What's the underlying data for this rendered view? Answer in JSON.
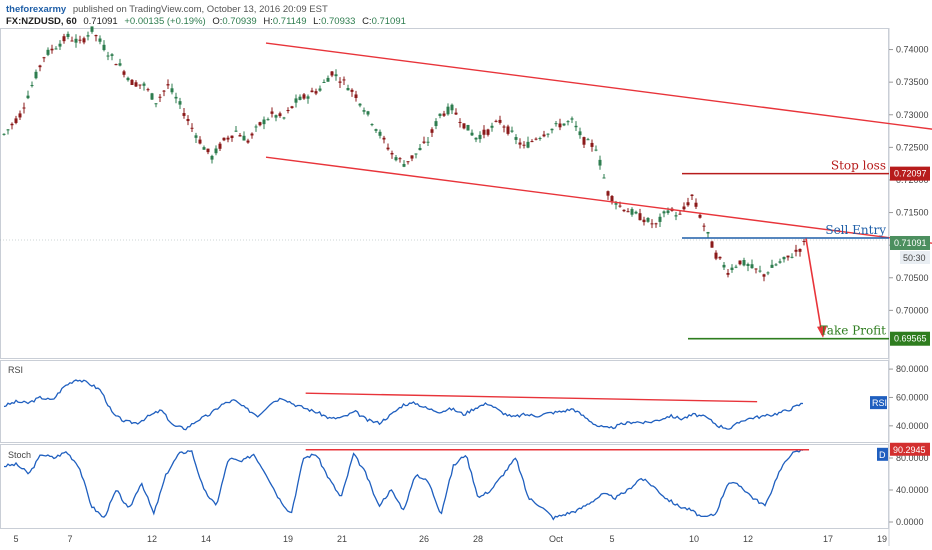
{
  "header": {
    "author": "theforexarmy",
    "published_text": "published on TradingView.com, October 13, 2016 20:09 EST",
    "symbol": "FX:NZDUSD, 60",
    "last": "0.71091",
    "change": "+0.00135 (+0.19%)",
    "o_label": "O:",
    "o": "0.70939",
    "h_label": "H:",
    "h": "0.71149",
    "l_label": "L:",
    "l": "0.70933",
    "c_label": "C:",
    "c": "0.71091"
  },
  "colors": {
    "up_candle": "#2e7d4f",
    "down_candle": "#8b1a1a",
    "channel": "#e8343a",
    "stop_loss": "#b71c1c",
    "sell_entry": "#1f5fa8",
    "take_profit": "#2e7d1f",
    "indicator_line": "#1f5fbf",
    "price_badge": "#4c8f5f"
  },
  "chart_data": [
    {
      "type": "line",
      "title": "",
      "note": "NZDUSD hourly candlestick price, approximate close path",
      "x": [
        "5",
        "7",
        "12",
        "14",
        "19",
        "21",
        "26",
        "28",
        "Oct",
        "5",
        "10",
        "12",
        "17",
        "19"
      ],
      "points": [
        [
          0,
          0.727
        ],
        [
          4,
          0.73
        ],
        [
          6,
          0.733
        ],
        [
          8,
          0.736
        ],
        [
          10,
          0.739
        ],
        [
          13,
          0.7405
        ],
        [
          16,
          0.742
        ],
        [
          19,
          0.741
        ],
        [
          22,
          0.743
        ],
        [
          26,
          0.7395
        ],
        [
          29,
          0.7375
        ],
        [
          32,
          0.735
        ],
        [
          35,
          0.7345
        ],
        [
          38,
          0.732
        ],
        [
          41,
          0.7345
        ],
        [
          44,
          0.7315
        ],
        [
          47,
          0.728
        ],
        [
          50,
          0.725
        ],
        [
          52,
          0.7235
        ],
        [
          55,
          0.726
        ],
        [
          58,
          0.7275
        ],
        [
          61,
          0.726
        ],
        [
          64,
          0.7285
        ],
        [
          67,
          0.73
        ],
        [
          70,
          0.7295
        ],
        [
          73,
          0.732
        ],
        [
          76,
          0.733
        ],
        [
          79,
          0.734
        ],
        [
          82,
          0.7365
        ],
        [
          85,
          0.735
        ],
        [
          88,
          0.733
        ],
        [
          91,
          0.73
        ],
        [
          94,
          0.727
        ],
        [
          97,
          0.724
        ],
        [
          100,
          0.7225
        ],
        [
          103,
          0.724
        ],
        [
          106,
          0.726
        ],
        [
          109,
          0.73
        ],
        [
          112,
          0.731
        ],
        [
          115,
          0.7285
        ],
        [
          118,
          0.7265
        ],
        [
          121,
          0.7275
        ],
        [
          124,
          0.729
        ],
        [
          127,
          0.727
        ],
        [
          130,
          0.725
        ],
        [
          133,
          0.7265
        ],
        [
          136,
          0.7275
        ],
        [
          139,
          0.7285
        ],
        [
          142,
          0.729
        ],
        [
          145,
          0.726
        ],
        [
          148,
          0.725
        ],
        [
          151,
          0.718
        ],
        [
          154,
          0.716
        ],
        [
          157,
          0.715
        ],
        [
          160,
          0.714
        ],
        [
          163,
          0.713
        ],
        [
          166,
          0.7155
        ],
        [
          169,
          0.7145
        ],
        [
          172,
          0.7175
        ],
        [
          175,
          0.713
        ],
        [
          178,
          0.7085
        ],
        [
          181,
          0.706
        ],
        [
          184,
          0.7075
        ],
        [
          187,
          0.7065
        ],
        [
          190,
          0.7055
        ],
        [
          193,
          0.707
        ],
        [
          196,
          0.708
        ],
        [
          199,
          0.7095
        ],
        [
          201,
          0.7109
        ]
      ],
      "ylim": [
        0.693,
        0.743
      ],
      "y_ticks": [
        "0.74000",
        "0.73500",
        "0.73000",
        "0.72500",
        "0.72000",
        "0.71500",
        "0.71000",
        "0.70500",
        "0.70000"
      ],
      "levels": {
        "stop_loss": {
          "label": "Stop loss",
          "value": 0.72097,
          "tag": "0.72097"
        },
        "sell_entry": {
          "label": "Sell Entry",
          "value": 0.7111,
          "tag": "0.71091",
          "countdown": "50:30"
        },
        "take_profit": {
          "label": "Take Profit",
          "value": 0.69565,
          "tag": "0.69565"
        }
      },
      "channel": {
        "upper": [
          [
            66,
            0.741
          ],
          [
            264,
            0.7255
          ]
        ],
        "lower": [
          [
            66,
            0.7235
          ],
          [
            264,
            0.708
          ]
        ]
      }
    },
    {
      "type": "line",
      "title": "RSI",
      "ylim": [
        30,
        85
      ],
      "y_ticks": [
        "80.0000",
        "60.0000",
        "40.0000"
      ],
      "tag": "RSI",
      "values": [
        54,
        57,
        56,
        60,
        58,
        68,
        73,
        70,
        65,
        48,
        43,
        42,
        47,
        51,
        40,
        38,
        44,
        48,
        55,
        58,
        52,
        47,
        56,
        60,
        55,
        52,
        49,
        45,
        46,
        50,
        44,
        42,
        48,
        55,
        56,
        52,
        50,
        52,
        48,
        53,
        56,
        50,
        46,
        48,
        47,
        49,
        50,
        52,
        46,
        40,
        38,
        41,
        43,
        42,
        44,
        47,
        45,
        48,
        46,
        40,
        38,
        44,
        46,
        47,
        49,
        52,
        56
      ],
      "trendline": [
        [
          0.34,
          63
        ],
        [
          0.88,
          57
        ]
      ]
    },
    {
      "type": "line",
      "title": "Stoch",
      "ylim": [
        -5,
        95
      ],
      "y_ticks": [
        "80.0000",
        "40.0000",
        "0.0000"
      ],
      "tag": "D",
      "value_tag": "90.2945",
      "values": [
        70,
        72,
        60,
        85,
        80,
        88,
        70,
        20,
        5,
        40,
        15,
        50,
        10,
        60,
        85,
        90,
        40,
        20,
        80,
        75,
        85,
        60,
        30,
        10,
        80,
        85,
        55,
        30,
        85,
        60,
        20,
        40,
        15,
        60,
        50,
        10,
        70,
        85,
        30,
        40,
        60,
        80,
        30,
        20,
        5,
        10,
        15,
        25,
        35,
        30,
        40,
        55,
        45,
        30,
        20,
        15,
        5,
        10,
        50,
        45,
        30,
        20,
        60,
        85,
        90
      ],
      "trendline": [
        [
          0.34,
          90.3
        ],
        [
          0.945,
          90.3
        ]
      ]
    }
  ],
  "x_axis": [
    "5",
    "7",
    "12",
    "14",
    "19",
    "21",
    "26",
    "28",
    "Oct",
    "5",
    "10",
    "12",
    "17",
    "19"
  ]
}
